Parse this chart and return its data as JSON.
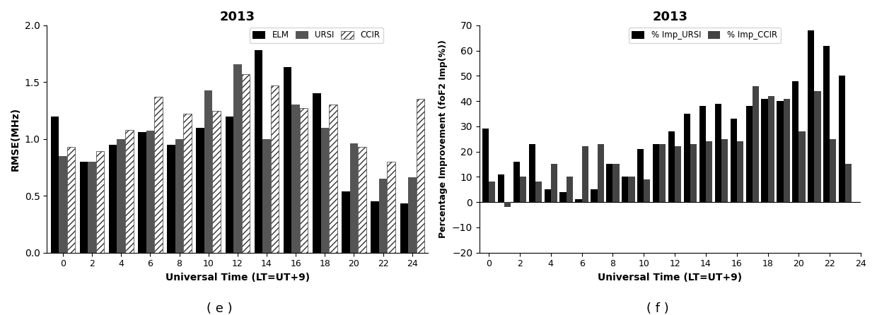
{
  "left_title": "2013",
  "left_xlabel": "Universal Time (LT=UT+9)",
  "left_ylabel": "RMSE(MHz)",
  "left_label_e": "( e )",
  "left_ylim": [
    0.0,
    2.0
  ],
  "left_yticks": [
    0.0,
    0.5,
    1.0,
    1.5,
    2.0
  ],
  "hours_e": [
    0,
    2,
    4,
    6,
    8,
    10,
    12,
    14,
    16,
    18,
    20,
    22,
    24
  ],
  "ELM": [
    1.2,
    0.8,
    0.95,
    1.06,
    0.95,
    1.1,
    1.2,
    1.78,
    1.63,
    1.4,
    0.54,
    0.45,
    0.43
  ],
  "URSI": [
    0.85,
    0.8,
    1.0,
    1.07,
    1.0,
    1.43,
    1.66,
    1.0,
    1.3,
    1.1,
    0.96,
    0.65,
    0.66
  ],
  "CCIR": [
    0.93,
    0.89,
    1.08,
    1.37,
    1.22,
    1.25,
    1.57,
    1.47,
    1.27,
    1.3,
    0.93,
    0.8,
    1.35
  ],
  "right_title": "2013",
  "right_xlabel": "Universal Time (LT=UT+9)",
  "right_ylabel": "Percentage Improvement (foF2 Imp(%))",
  "right_label_f": "( f )",
  "right_ylim": [
    -20,
    70
  ],
  "right_yticks": [
    -20,
    -10,
    0,
    10,
    20,
    30,
    40,
    50,
    60,
    70
  ],
  "hours_f": [
    0,
    1,
    2,
    3,
    4,
    5,
    6,
    7,
    8,
    9,
    10,
    11,
    12,
    13,
    14,
    15,
    16,
    17,
    18,
    19,
    20,
    21,
    22,
    23
  ],
  "xticks_f": [
    0,
    2,
    4,
    6,
    8,
    10,
    12,
    14,
    16,
    18,
    20,
    22,
    24
  ],
  "Imp_URSI": [
    29,
    11,
    16,
    23,
    5,
    4,
    1,
    5,
    15,
    10,
    21,
    23,
    28,
    35,
    38,
    39,
    33,
    38,
    41,
    40,
    48,
    68,
    62,
    50
  ],
  "Imp_CCIR": [
    8,
    -2,
    10,
    8,
    15,
    10,
    22,
    23,
    15,
    10,
    9,
    23,
    22,
    23,
    24,
    25,
    24,
    46,
    42,
    41,
    28,
    44,
    25,
    15
  ],
  "bar_color_ELM": "#000000",
  "bar_color_URSI": "#555555",
  "bar_color_CCIR_face": "#ffffff",
  "bar_color_CCIR_edge": "#333333",
  "bar_color_ImpURSI": "#000000",
  "bar_color_ImpCCIR": "#444444"
}
